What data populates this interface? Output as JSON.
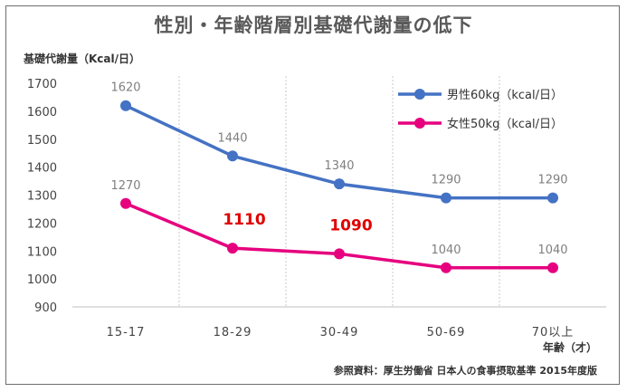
{
  "title": "性別・年齢階層別基礎代謝量の低下",
  "source": "参照資料：厚生労働省 日本人の食事摂取基準 2015年度版",
  "chart_data": {
    "type": "line",
    "title": "性別・年齢階層別基礎代謝量の低下",
    "ylabel": "基礎代謝量（Kcal/日）",
    "xlabel": "年齢（才）",
    "categories": [
      "15-17",
      "18-29",
      "30-49",
      "50-69",
      "70以上"
    ],
    "ylim": [
      900,
      1700
    ],
    "yticks": [
      900,
      1000,
      1100,
      1200,
      1300,
      1400,
      1500,
      1600,
      1700
    ],
    "grid": "vertical-dotted",
    "legend": "top-right",
    "series": [
      {
        "name": "男性60kg（kcal/日）",
        "color": "#4472c4",
        "values": [
          1620,
          1440,
          1340,
          1290,
          1290
        ],
        "labels": [
          "1620",
          "1440",
          "1340",
          "1290",
          "1290"
        ],
        "highlight": [
          false,
          false,
          false,
          false,
          false
        ]
      },
      {
        "name": "女性50kg（kcal/日）",
        "color": "#e6007e",
        "values": [
          1270,
          1110,
          1090,
          1040,
          1040
        ],
        "labels": [
          "1270",
          "1110",
          "1090",
          "1040",
          "1040"
        ],
        "highlight": [
          false,
          true,
          true,
          false,
          false
        ]
      }
    ],
    "highlight_color": "#e00000"
  }
}
